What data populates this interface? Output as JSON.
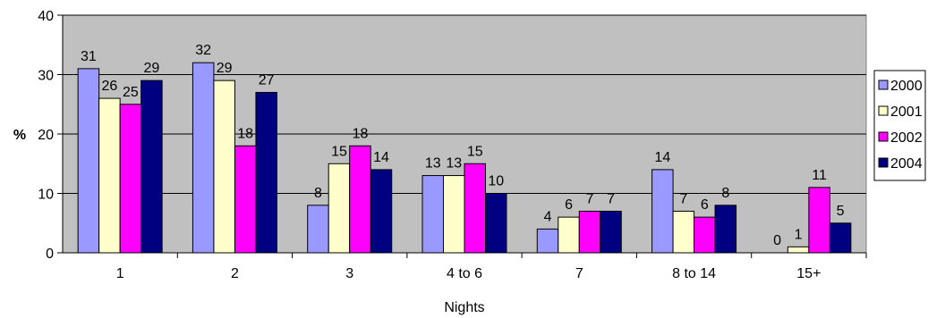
{
  "chart_data": {
    "type": "bar",
    "title": "",
    "xlabel": "Nights",
    "ylabel": "%",
    "ylim": [
      0,
      40
    ],
    "yticks": [
      0,
      10,
      20,
      30,
      40
    ],
    "grid": true,
    "legend_position": "right",
    "categories": [
      "1",
      "2",
      "3",
      "4 to 6",
      "7",
      "8 to 14",
      "15+"
    ],
    "series": [
      {
        "name": "2000",
        "color": "#9999ff",
        "values": [
          31,
          32,
          8,
          13,
          4,
          14,
          0
        ]
      },
      {
        "name": "2001",
        "color": "#ffffcc",
        "values": [
          26,
          29,
          15,
          13,
          6,
          7,
          1
        ]
      },
      {
        "name": "2002",
        "color": "#ff00ff",
        "values": [
          25,
          18,
          18,
          15,
          7,
          6,
          11
        ]
      },
      {
        "name": "2004",
        "color": "#000080",
        "values": [
          29,
          27,
          14,
          10,
          7,
          8,
          5
        ]
      }
    ],
    "plot_background": "#c0c0c0"
  }
}
